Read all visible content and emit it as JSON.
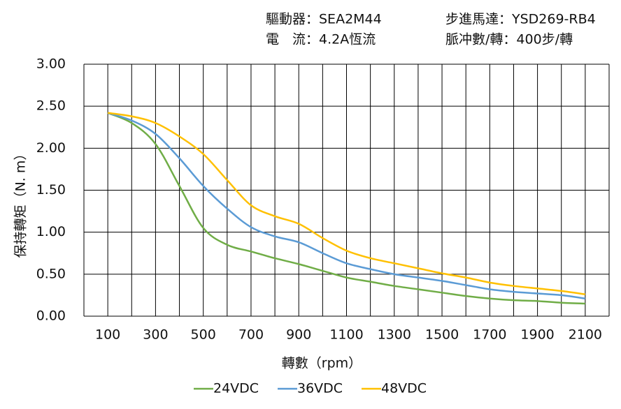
{
  "chart_data": {
    "type": "line",
    "info": [
      "驅動器：SEA2M44",
      "步進馬達：YSD269-RB4",
      "電　流：4.2A恆流",
      "脈冲數/轉：400步/轉"
    ],
    "x_label": "轉數（rpm）",
    "y_label": "保持轉矩（N. m）",
    "x": [
      100,
      200,
      300,
      400,
      500,
      600,
      700,
      800,
      900,
      1000,
      1100,
      1200,
      1300,
      1400,
      1500,
      1600,
      1700,
      1800,
      1900,
      2000,
      2100
    ],
    "series": [
      {
        "name": "24VDC",
        "color": "#70ad47",
        "values": [
          2.42,
          2.3,
          2.05,
          1.55,
          1.05,
          0.85,
          0.77,
          0.69,
          0.62,
          0.54,
          0.46,
          0.41,
          0.36,
          0.32,
          0.28,
          0.24,
          0.21,
          0.19,
          0.18,
          0.16,
          0.15
        ]
      },
      {
        "name": "36VDC",
        "color": "#5b9bd5",
        "values": [
          2.42,
          2.33,
          2.17,
          1.88,
          1.55,
          1.28,
          1.06,
          0.95,
          0.88,
          0.75,
          0.63,
          0.56,
          0.5,
          0.46,
          0.42,
          0.37,
          0.32,
          0.29,
          0.27,
          0.25,
          0.21
        ]
      },
      {
        "name": "48VDC",
        "color": "#ffc000",
        "values": [
          2.42,
          2.38,
          2.3,
          2.14,
          1.93,
          1.62,
          1.32,
          1.19,
          1.1,
          0.93,
          0.78,
          0.69,
          0.63,
          0.57,
          0.51,
          0.46,
          0.4,
          0.36,
          0.33,
          0.3,
          0.26
        ]
      }
    ],
    "xlim": [
      0,
      2200
    ],
    "xticks": [
      100,
      300,
      500,
      700,
      900,
      1100,
      1300,
      1500,
      1700,
      1900,
      2100
    ],
    "ylim": [
      0,
      3
    ],
    "yticks": [
      {
        "value": 0,
        "label": "0.00"
      },
      {
        "value": 0.5,
        "label": "0.50"
      },
      {
        "value": 1,
        "label": "1.00"
      },
      {
        "value": 1.5,
        "label": "1.50"
      },
      {
        "value": 2,
        "label": "2.00"
      },
      {
        "value": 2.5,
        "label": "2.50"
      },
      {
        "value": 3,
        "label": "3.00"
      }
    ],
    "grid": true
  }
}
